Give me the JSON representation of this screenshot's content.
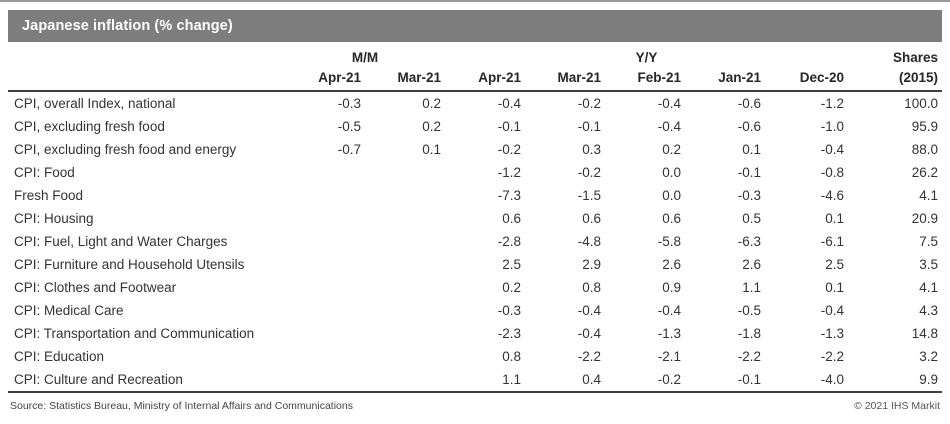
{
  "title_bar": {
    "title": "Japanese inflation (% change)"
  },
  "colors": {
    "title_bar_bg": "#7d7d7d",
    "title_text": "#ffffff",
    "rule_dark": "#3f3f3f",
    "rule_top": "#9a9a9a",
    "body_text": "#333333"
  },
  "chart_data": {
    "type": "table",
    "title": "Japanese inflation (% change)",
    "column_groups": [
      {
        "label": "",
        "span": 1
      },
      {
        "label": "M/M",
        "span": 2
      },
      {
        "label": "Y/Y",
        "span": 5
      },
      {
        "label": "Shares",
        "span": 1
      }
    ],
    "columns": [
      "",
      "Apr-21",
      "Mar-21",
      "Apr-21",
      "Mar-21",
      "Feb-21",
      "Jan-21",
      "Dec-20",
      "(2015)"
    ],
    "rows": [
      {
        "label": "CPI, overall Index, national",
        "values": [
          "-0.3",
          "0.2",
          "-0.4",
          "-0.2",
          "-0.4",
          "-0.6",
          "-1.2",
          "100.0"
        ]
      },
      {
        "label": "CPI, excluding fresh food",
        "values": [
          "-0.5",
          "0.2",
          "-0.1",
          "-0.1",
          "-0.4",
          "-0.6",
          "-1.0",
          "95.9"
        ]
      },
      {
        "label": "CPI, excluding fresh food and energy",
        "values": [
          "-0.7",
          "0.1",
          "-0.2",
          "0.3",
          "0.2",
          "0.1",
          "-0.4",
          "88.0"
        ]
      },
      {
        "label": "CPI: Food",
        "values": [
          "",
          "",
          "-1.2",
          "-0.2",
          "0.0",
          "-0.1",
          "-0.8",
          "26.2"
        ]
      },
      {
        "label": "Fresh Food",
        "values": [
          "",
          "",
          "-7.3",
          "-1.5",
          "0.0",
          "-0.3",
          "-4.6",
          "4.1"
        ]
      },
      {
        "label": "CPI: Housing",
        "values": [
          "",
          "",
          "0.6",
          "0.6",
          "0.6",
          "0.5",
          "0.1",
          "20.9"
        ]
      },
      {
        "label": "CPI: Fuel, Light and Water Charges",
        "values": [
          "",
          "",
          "-2.8",
          "-4.8",
          "-5.8",
          "-6.3",
          "-6.1",
          "7.5"
        ]
      },
      {
        "label": "CPI: Furniture and Household Utensils",
        "values": [
          "",
          "",
          "2.5",
          "2.9",
          "2.6",
          "2.6",
          "2.5",
          "3.5"
        ]
      },
      {
        "label": "CPI: Clothes and Footwear",
        "values": [
          "",
          "",
          "0.2",
          "0.8",
          "0.9",
          "1.1",
          "0.1",
          "4.1"
        ]
      },
      {
        "label": "CPI: Medical Care",
        "values": [
          "",
          "",
          "-0.3",
          "-0.4",
          "-0.4",
          "-0.5",
          "-0.4",
          "4.3"
        ]
      },
      {
        "label": "CPI: Transportation and Communication",
        "values": [
          "",
          "",
          "-2.3",
          "-0.4",
          "-1.3",
          "-1.8",
          "-1.3",
          "14.8"
        ]
      },
      {
        "label": "CPI: Education",
        "values": [
          "",
          "",
          "0.8",
          "-2.2",
          "-2.1",
          "-2.2",
          "-2.2",
          "3.2"
        ]
      },
      {
        "label": "CPI: Culture and Recreation",
        "values": [
          "",
          "",
          "1.1",
          "0.4",
          "-0.2",
          "-0.1",
          "-4.0",
          "9.9"
        ]
      }
    ]
  },
  "footer": {
    "source": "Source: Statistics Bureau, Ministry of Internal Affairs and Communications",
    "copyright": "© 2021 IHS Markit"
  }
}
